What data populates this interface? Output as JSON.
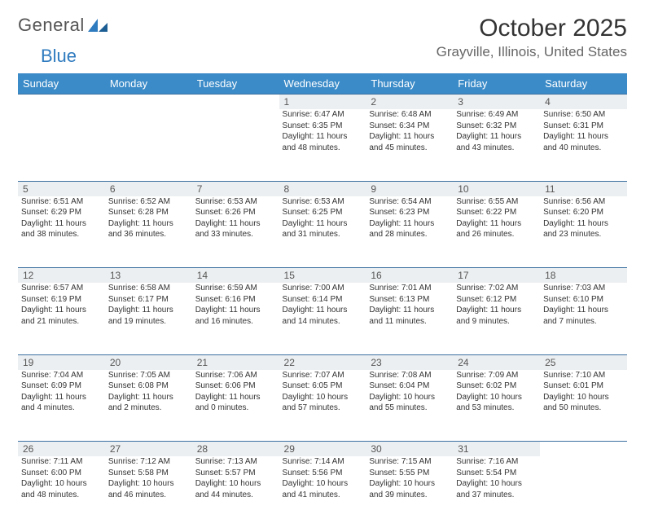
{
  "logo": {
    "part1": "General",
    "part2": "Blue"
  },
  "title": "October 2025",
  "location": "Grayville, Illinois, United States",
  "colors": {
    "header_bg": "#3b8bc8",
    "header_text": "#ffffff",
    "daynum_bg": "#eceff1",
    "border": "#3b6fa0",
    "text": "#333333",
    "muted": "#666666",
    "logo_blue": "#2f7bbf"
  },
  "day_headers": [
    "Sunday",
    "Monday",
    "Tuesday",
    "Wednesday",
    "Thursday",
    "Friday",
    "Saturday"
  ],
  "weeks": [
    [
      {
        "n": "",
        "lines": []
      },
      {
        "n": "",
        "lines": []
      },
      {
        "n": "",
        "lines": []
      },
      {
        "n": "1",
        "lines": [
          "Sunrise: 6:47 AM",
          "Sunset: 6:35 PM",
          "Daylight: 11 hours",
          "and 48 minutes."
        ]
      },
      {
        "n": "2",
        "lines": [
          "Sunrise: 6:48 AM",
          "Sunset: 6:34 PM",
          "Daylight: 11 hours",
          "and 45 minutes."
        ]
      },
      {
        "n": "3",
        "lines": [
          "Sunrise: 6:49 AM",
          "Sunset: 6:32 PM",
          "Daylight: 11 hours",
          "and 43 minutes."
        ]
      },
      {
        "n": "4",
        "lines": [
          "Sunrise: 6:50 AM",
          "Sunset: 6:31 PM",
          "Daylight: 11 hours",
          "and 40 minutes."
        ]
      }
    ],
    [
      {
        "n": "5",
        "lines": [
          "Sunrise: 6:51 AM",
          "Sunset: 6:29 PM",
          "Daylight: 11 hours",
          "and 38 minutes."
        ]
      },
      {
        "n": "6",
        "lines": [
          "Sunrise: 6:52 AM",
          "Sunset: 6:28 PM",
          "Daylight: 11 hours",
          "and 36 minutes."
        ]
      },
      {
        "n": "7",
        "lines": [
          "Sunrise: 6:53 AM",
          "Sunset: 6:26 PM",
          "Daylight: 11 hours",
          "and 33 minutes."
        ]
      },
      {
        "n": "8",
        "lines": [
          "Sunrise: 6:53 AM",
          "Sunset: 6:25 PM",
          "Daylight: 11 hours",
          "and 31 minutes."
        ]
      },
      {
        "n": "9",
        "lines": [
          "Sunrise: 6:54 AM",
          "Sunset: 6:23 PM",
          "Daylight: 11 hours",
          "and 28 minutes."
        ]
      },
      {
        "n": "10",
        "lines": [
          "Sunrise: 6:55 AM",
          "Sunset: 6:22 PM",
          "Daylight: 11 hours",
          "and 26 minutes."
        ]
      },
      {
        "n": "11",
        "lines": [
          "Sunrise: 6:56 AM",
          "Sunset: 6:20 PM",
          "Daylight: 11 hours",
          "and 23 minutes."
        ]
      }
    ],
    [
      {
        "n": "12",
        "lines": [
          "Sunrise: 6:57 AM",
          "Sunset: 6:19 PM",
          "Daylight: 11 hours",
          "and 21 minutes."
        ]
      },
      {
        "n": "13",
        "lines": [
          "Sunrise: 6:58 AM",
          "Sunset: 6:17 PM",
          "Daylight: 11 hours",
          "and 19 minutes."
        ]
      },
      {
        "n": "14",
        "lines": [
          "Sunrise: 6:59 AM",
          "Sunset: 6:16 PM",
          "Daylight: 11 hours",
          "and 16 minutes."
        ]
      },
      {
        "n": "15",
        "lines": [
          "Sunrise: 7:00 AM",
          "Sunset: 6:14 PM",
          "Daylight: 11 hours",
          "and 14 minutes."
        ]
      },
      {
        "n": "16",
        "lines": [
          "Sunrise: 7:01 AM",
          "Sunset: 6:13 PM",
          "Daylight: 11 hours",
          "and 11 minutes."
        ]
      },
      {
        "n": "17",
        "lines": [
          "Sunrise: 7:02 AM",
          "Sunset: 6:12 PM",
          "Daylight: 11 hours",
          "and 9 minutes."
        ]
      },
      {
        "n": "18",
        "lines": [
          "Sunrise: 7:03 AM",
          "Sunset: 6:10 PM",
          "Daylight: 11 hours",
          "and 7 minutes."
        ]
      }
    ],
    [
      {
        "n": "19",
        "lines": [
          "Sunrise: 7:04 AM",
          "Sunset: 6:09 PM",
          "Daylight: 11 hours",
          "and 4 minutes."
        ]
      },
      {
        "n": "20",
        "lines": [
          "Sunrise: 7:05 AM",
          "Sunset: 6:08 PM",
          "Daylight: 11 hours",
          "and 2 minutes."
        ]
      },
      {
        "n": "21",
        "lines": [
          "Sunrise: 7:06 AM",
          "Sunset: 6:06 PM",
          "Daylight: 11 hours",
          "and 0 minutes."
        ]
      },
      {
        "n": "22",
        "lines": [
          "Sunrise: 7:07 AM",
          "Sunset: 6:05 PM",
          "Daylight: 10 hours",
          "and 57 minutes."
        ]
      },
      {
        "n": "23",
        "lines": [
          "Sunrise: 7:08 AM",
          "Sunset: 6:04 PM",
          "Daylight: 10 hours",
          "and 55 minutes."
        ]
      },
      {
        "n": "24",
        "lines": [
          "Sunrise: 7:09 AM",
          "Sunset: 6:02 PM",
          "Daylight: 10 hours",
          "and 53 minutes."
        ]
      },
      {
        "n": "25",
        "lines": [
          "Sunrise: 7:10 AM",
          "Sunset: 6:01 PM",
          "Daylight: 10 hours",
          "and 50 minutes."
        ]
      }
    ],
    [
      {
        "n": "26",
        "lines": [
          "Sunrise: 7:11 AM",
          "Sunset: 6:00 PM",
          "Daylight: 10 hours",
          "and 48 minutes."
        ]
      },
      {
        "n": "27",
        "lines": [
          "Sunrise: 7:12 AM",
          "Sunset: 5:58 PM",
          "Daylight: 10 hours",
          "and 46 minutes."
        ]
      },
      {
        "n": "28",
        "lines": [
          "Sunrise: 7:13 AM",
          "Sunset: 5:57 PM",
          "Daylight: 10 hours",
          "and 44 minutes."
        ]
      },
      {
        "n": "29",
        "lines": [
          "Sunrise: 7:14 AM",
          "Sunset: 5:56 PM",
          "Daylight: 10 hours",
          "and 41 minutes."
        ]
      },
      {
        "n": "30",
        "lines": [
          "Sunrise: 7:15 AM",
          "Sunset: 5:55 PM",
          "Daylight: 10 hours",
          "and 39 minutes."
        ]
      },
      {
        "n": "31",
        "lines": [
          "Sunrise: 7:16 AM",
          "Sunset: 5:54 PM",
          "Daylight: 10 hours",
          "and 37 minutes."
        ]
      },
      {
        "n": "",
        "lines": []
      }
    ]
  ]
}
